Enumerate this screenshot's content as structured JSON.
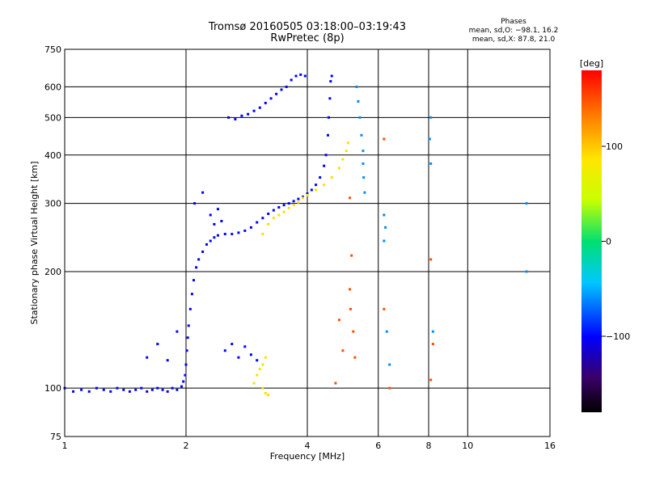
{
  "title": {
    "line1": "Tromsø 20160505 03:18:00–03:19:43",
    "line2": "RwPretec (8p)"
  },
  "phase_info": {
    "heading": "Phases",
    "line_o": "mean, sd,O: −98.1, 16.2",
    "line_x": "mean, sd,X:  87.8, 21.0"
  },
  "colorbar": {
    "unit": "[deg]",
    "ticks": [
      {
        "value": 100,
        "label": "100"
      },
      {
        "value": 0,
        "label": "0"
      },
      {
        "value": -100,
        "label": "−100"
      }
    ],
    "range": [
      -180,
      180
    ]
  },
  "chart_data": {
    "type": "scatter",
    "xlabel": "Frequency [MHz]",
    "ylabel": "Stationary phase Virtual Height [km]",
    "xscale": "log",
    "yscale": "log",
    "xlim": [
      1,
      16
    ],
    "ylim": [
      75,
      750
    ],
    "xticks": [
      {
        "value": 1,
        "label": "1"
      },
      {
        "value": 2,
        "label": "2"
      },
      {
        "value": 4,
        "label": "4"
      },
      {
        "value": 6,
        "label": "6"
      },
      {
        "value": 8,
        "label": "8"
      },
      {
        "value": 10,
        "label": "10"
      },
      {
        "value": 16,
        "label": "16"
      }
    ],
    "yticks": [
      {
        "value": 75,
        "label": "75"
      },
      {
        "value": 100,
        "label": "100"
      },
      {
        "value": 200,
        "label": "200"
      },
      {
        "value": 300,
        "label": "300"
      },
      {
        "value": 400,
        "label": "400"
      },
      {
        "value": 500,
        "label": "500"
      },
      {
        "value": 600,
        "label": "600"
      },
      {
        "value": 750,
        "label": "750"
      }
    ],
    "grid": true,
    "series": [
      {
        "color_phase_deg": -100,
        "points": [
          [
            1.0,
            100
          ],
          [
            1.05,
            98
          ],
          [
            1.1,
            99
          ],
          [
            1.15,
            98
          ],
          [
            1.2,
            100
          ],
          [
            1.25,
            99
          ],
          [
            1.3,
            98
          ],
          [
            1.35,
            100
          ],
          [
            1.4,
            99
          ],
          [
            1.45,
            98
          ],
          [
            1.5,
            99
          ],
          [
            1.55,
            100
          ],
          [
            1.6,
            98
          ],
          [
            1.65,
            99
          ],
          [
            1.7,
            100
          ],
          [
            1.75,
            99
          ],
          [
            1.8,
            98
          ],
          [
            1.85,
            100
          ],
          [
            1.9,
            99
          ],
          [
            1.95,
            101
          ],
          [
            1.97,
            104
          ],
          [
            1.99,
            108
          ],
          [
            2.0,
            115
          ],
          [
            2.01,
            125
          ],
          [
            2.02,
            135
          ],
          [
            2.03,
            145
          ],
          [
            2.05,
            160
          ],
          [
            2.07,
            175
          ],
          [
            2.09,
            190
          ],
          [
            2.12,
            205
          ],
          [
            2.15,
            215
          ],
          [
            2.2,
            225
          ],
          [
            2.25,
            235
          ],
          [
            2.3,
            240
          ],
          [
            2.35,
            245
          ],
          [
            2.4,
            248
          ],
          [
            2.5,
            250
          ],
          [
            2.6,
            250
          ],
          [
            2.7,
            252
          ],
          [
            2.8,
            255
          ],
          [
            2.9,
            260
          ],
          [
            3.0,
            268
          ],
          [
            3.1,
            275
          ],
          [
            3.2,
            282
          ],
          [
            3.3,
            288
          ],
          [
            3.4,
            293
          ],
          [
            3.5,
            297
          ],
          [
            3.6,
            300
          ],
          [
            3.7,
            304
          ],
          [
            3.8,
            308
          ],
          [
            3.9,
            312
          ],
          [
            4.0,
            318
          ],
          [
            4.1,
            325
          ],
          [
            4.2,
            335
          ],
          [
            4.3,
            350
          ],
          [
            4.4,
            375
          ],
          [
            4.45,
            400
          ],
          [
            4.5,
            450
          ],
          [
            4.52,
            500
          ],
          [
            4.55,
            560
          ],
          [
            4.57,
            620
          ],
          [
            4.6,
            640
          ],
          [
            2.55,
            500
          ],
          [
            2.65,
            495
          ],
          [
            2.75,
            505
          ],
          [
            2.85,
            510
          ],
          [
            2.95,
            520
          ],
          [
            3.05,
            530
          ],
          [
            3.15,
            545
          ],
          [
            3.25,
            560
          ],
          [
            3.35,
            575
          ],
          [
            3.45,
            590
          ],
          [
            3.55,
            600
          ],
          [
            3.65,
            625
          ],
          [
            3.75,
            640
          ],
          [
            3.85,
            645
          ],
          [
            3.95,
            640
          ],
          [
            1.6,
            120
          ],
          [
            1.7,
            130
          ],
          [
            1.8,
            118
          ],
          [
            1.9,
            140
          ],
          [
            2.5,
            125
          ],
          [
            2.6,
            130
          ],
          [
            2.7,
            120
          ],
          [
            2.8,
            128
          ],
          [
            2.9,
            122
          ],
          [
            3.0,
            118
          ],
          [
            2.1,
            300
          ],
          [
            2.2,
            320
          ],
          [
            2.3,
            280
          ],
          [
            2.4,
            290
          ],
          [
            2.45,
            270
          ],
          [
            2.35,
            265
          ]
        ]
      },
      {
        "color_phase_deg": 90,
        "points": [
          [
            3.1,
            250
          ],
          [
            3.2,
            265
          ],
          [
            3.3,
            275
          ],
          [
            3.4,
            280
          ],
          [
            3.5,
            285
          ],
          [
            3.6,
            292
          ],
          [
            3.7,
            297
          ],
          [
            3.8,
            302
          ],
          [
            3.9,
            310
          ],
          [
            4.0,
            315
          ],
          [
            4.2,
            325
          ],
          [
            4.4,
            335
          ],
          [
            4.6,
            350
          ],
          [
            4.8,
            370
          ],
          [
            4.9,
            390
          ],
          [
            5.0,
            410
          ],
          [
            5.05,
            430
          ],
          [
            3.0,
            108
          ],
          [
            3.05,
            112
          ],
          [
            3.1,
            100
          ],
          [
            3.15,
            97
          ],
          [
            3.2,
            96
          ],
          [
            3.1,
            115
          ],
          [
            3.15,
            120
          ],
          [
            2.95,
            103
          ]
        ]
      },
      {
        "color_phase_deg": 150,
        "points": [
          [
            5.1,
            310
          ],
          [
            5.15,
            220
          ],
          [
            5.1,
            180
          ],
          [
            5.12,
            160
          ],
          [
            5.2,
            140
          ],
          [
            5.25,
            120
          ],
          [
            4.8,
            150
          ],
          [
            4.9,
            125
          ],
          [
            4.7,
            103
          ],
          [
            6.2,
            440
          ],
          [
            6.2,
            160
          ],
          [
            8.1,
            215
          ],
          [
            8.2,
            130
          ],
          [
            8.1,
            105
          ],
          [
            6.4,
            100
          ]
        ]
      },
      {
        "color_phase_deg": -60,
        "points": [
          [
            5.3,
            600
          ],
          [
            5.35,
            550
          ],
          [
            5.4,
            500
          ],
          [
            5.45,
            450
          ],
          [
            5.5,
            410
          ],
          [
            5.5,
            380
          ],
          [
            5.52,
            350
          ],
          [
            5.55,
            320
          ],
          [
            6.2,
            280
          ],
          [
            6.25,
            260
          ],
          [
            6.2,
            240
          ],
          [
            8.1,
            500
          ],
          [
            8.05,
            440
          ],
          [
            8.1,
            380
          ],
          [
            8.2,
            140
          ],
          [
            14.0,
            300
          ],
          [
            14.0,
            200
          ],
          [
            6.3,
            140
          ],
          [
            6.4,
            115
          ]
        ]
      }
    ]
  }
}
